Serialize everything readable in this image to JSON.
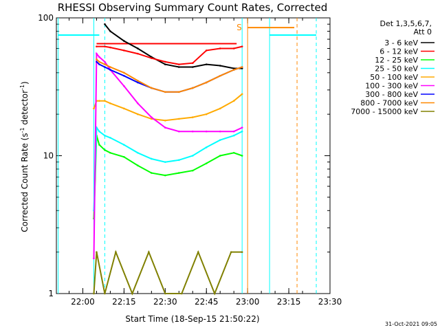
{
  "chart_data": {
    "type": "line",
    "title": "RHESSI Observing Summary Count Rates, Corrected",
    "xlabel": "Start Time (18-Sep-15 21:50:22)",
    "ylabel_parts": [
      "Corrected Count Rate (s",
      "-1",
      " detector",
      "-1",
      ")"
    ],
    "ylabel": "Corrected Count Rate (s-1 detector-1)",
    "xlim": [
      "21:50:22",
      "23:30"
    ],
    "x_ticks": [
      "22:00",
      "22:15",
      "22:30",
      "22:45",
      "23:00",
      "23:15",
      "23:30"
    ],
    "y_scale": "log",
    "ylim": [
      1,
      100
    ],
    "y_ticks": [
      "1",
      "10",
      "100"
    ],
    "legend": {
      "header": [
        "Det 1,3,5,6,7,",
        "Att 0"
      ],
      "placement": "top-right outside"
    },
    "series": [
      {
        "name": "3 - 6 keV",
        "color": "#000000",
        "x": [
          "22:08",
          "22:10",
          "22:15",
          "22:20",
          "22:25",
          "22:30",
          "22:35",
          "22:40",
          "22:45",
          "22:50",
          "22:55",
          "22:58"
        ],
        "y": [
          90,
          80,
          68,
          60,
          52,
          46,
          44,
          44,
          46,
          45,
          43,
          43
        ]
      },
      {
        "name": "6 - 12 keV",
        "color": "#ff0000",
        "x": [
          "22:05",
          "22:08",
          "22:10",
          "22:15",
          "22:20",
          "22:25",
          "22:30",
          "22:35",
          "22:40",
          "22:45",
          "22:50",
          "22:55",
          "22:58"
        ],
        "y": [
          62,
          62,
          61,
          58,
          55,
          51,
          48,
          46,
          47,
          58,
          60,
          60,
          62
        ]
      },
      {
        "name": "12 - 25 keV",
        "color": "#00ff00",
        "x": [
          "22:04",
          "22:05",
          "22:06",
          "22:08",
          "22:10",
          "22:15",
          "22:20",
          "22:25",
          "22:30",
          "22:35",
          "22:40",
          "22:45",
          "22:50",
          "22:55",
          "22:58"
        ],
        "y": [
          3.5,
          14,
          12,
          11,
          10.5,
          9.8,
          8.5,
          7.5,
          7.2,
          7.5,
          7.8,
          8.8,
          10,
          10.5,
          10
        ]
      },
      {
        "name": "25 - 50 keV",
        "color": "#00ffff",
        "x": [
          "22:04",
          "22:05",
          "22:06",
          "22:08",
          "22:10",
          "22:15",
          "22:20",
          "22:25",
          "22:30",
          "22:35",
          "22:40",
          "22:45",
          "22:50",
          "22:55",
          "22:58"
        ],
        "y": [
          4,
          16,
          15,
          14,
          13.5,
          12,
          10.5,
          9.5,
          9,
          9.3,
          10,
          11.5,
          13,
          14,
          15
        ]
      },
      {
        "name": "50 - 100 keV",
        "color": "#ffaa00",
        "x": [
          "22:04",
          "22:05",
          "22:06",
          "22:08",
          "22:10",
          "22:15",
          "22:20",
          "22:25",
          "22:30",
          "22:35",
          "22:40",
          "22:45",
          "22:50",
          "22:55",
          "22:58"
        ],
        "y": [
          22,
          25,
          25,
          25,
          24,
          22,
          20,
          18.5,
          18,
          18.5,
          19,
          20,
          22,
          25,
          28
        ]
      },
      {
        "name": "100 - 300 keV",
        "color": "#ff00ff",
        "x": [
          "22:04",
          "22:05",
          "22:06",
          "22:08",
          "22:10",
          "22:15",
          "22:20",
          "22:25",
          "22:30",
          "22:35",
          "22:40",
          "22:45",
          "22:50",
          "22:55",
          "22:58"
        ],
        "y": [
          1.8,
          55,
          52,
          48,
          42,
          32,
          24,
          19,
          16,
          15,
          15,
          15,
          15,
          15,
          16
        ]
      },
      {
        "name": "300 - 800 keV",
        "color": "#0000ff",
        "x": [
          "22:05",
          "22:06",
          "22:08",
          "22:10",
          "22:15",
          "22:20",
          "22:25",
          "22:30",
          "22:35",
          "22:40",
          "22:45",
          "22:50",
          "22:55",
          "22:58"
        ],
        "y": [
          48,
          46,
          44,
          42,
          38,
          34,
          31,
          29,
          29,
          31,
          34,
          38,
          42,
          44
        ]
      },
      {
        "name": "800 - 7000 keV",
        "color": "#ff8800",
        "x": [
          "22:05",
          "22:06",
          "22:08",
          "22:10",
          "22:15",
          "22:20",
          "22:25",
          "22:30",
          "22:35",
          "22:40",
          "22:45",
          "22:50",
          "22:55",
          "22:58"
        ],
        "y": [
          50,
          48,
          46,
          44,
          40,
          35,
          31,
          29,
          29,
          31,
          34,
          38,
          42,
          44
        ]
      },
      {
        "name": "7000 - 15000 keV",
        "color": "#808000",
        "x": [
          "22:04",
          "22:05",
          "22:08",
          "22:12",
          "22:18",
          "22:24",
          "22:30",
          "22:36",
          "22:42",
          "22:48",
          "22:54",
          "22:58"
        ],
        "y": [
          1,
          2,
          1,
          2,
          1,
          2,
          1,
          1,
          2,
          1,
          2,
          2
        ]
      }
    ],
    "reference_lines": [
      {
        "color": "#00ffff",
        "style": "solid",
        "x": [
          "21:51",
          "22:06"
        ],
        "y": [
          75,
          75
        ]
      },
      {
        "color": "#00ffff",
        "style": "solid",
        "x": [
          "23:08",
          "23:25"
        ],
        "y": [
          75,
          75
        ]
      },
      {
        "color": "#ff0000",
        "style": "solid",
        "x": [
          "22:05",
          "22:56"
        ],
        "y": [
          65,
          65
        ]
      },
      {
        "color": "#ff8800",
        "style": "solid",
        "x": [
          "23:00",
          "23:17"
        ],
        "y": [
          85,
          85
        ]
      }
    ],
    "vertical_markers": [
      {
        "color": "#00ffff",
        "style": "solid",
        "x": "21:51"
      },
      {
        "color": "#00ffff",
        "style": "solid",
        "x": "22:04"
      },
      {
        "color": "#00ffff",
        "style": "dashed",
        "x": "22:08"
      },
      {
        "color": "#00ffff",
        "style": "solid",
        "x": "22:58"
      },
      {
        "color": "#ff8800",
        "style": "solid",
        "x": "23:00"
      },
      {
        "color": "#00ffff",
        "style": "solid",
        "x": "23:08"
      },
      {
        "color": "#ff8800",
        "style": "dashed",
        "x": "23:18"
      },
      {
        "color": "#00ffff",
        "style": "dashed",
        "x": "23:25"
      }
    ],
    "annotations": [
      {
        "text": "S",
        "color": "#ff8800",
        "x": "22:58",
        "y": 85
      }
    ],
    "timestamp": "31-Oct-2021 09:05"
  }
}
